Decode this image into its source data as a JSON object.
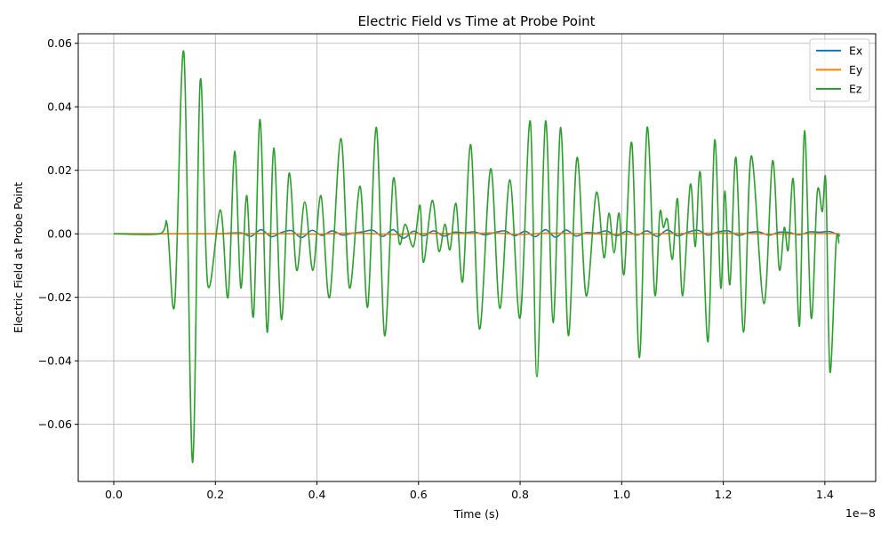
{
  "chart_data": {
    "type": "line",
    "title": "Electric Field vs Time at Probe Point",
    "xlabel": "Time (s)",
    "ylabel": "Electric Field at Probe Point",
    "x_scale_label": "1e−8",
    "xlim": [
      -0.07,
      1.5
    ],
    "ylim": [
      -0.078,
      0.063
    ],
    "xticks": [
      0.0,
      0.2,
      0.4,
      0.6,
      0.8,
      1.0,
      1.2,
      1.4
    ],
    "xtick_labels": [
      "0.0",
      "0.2",
      "0.4",
      "0.6",
      "0.8",
      "1.0",
      "1.2",
      "1.4"
    ],
    "yticks": [
      -0.06,
      -0.04,
      -0.02,
      0.0,
      0.02,
      0.04,
      0.06
    ],
    "ytick_labels": [
      "−0.06",
      "−0.04",
      "−0.02",
      "0.00",
      "0.02",
      "0.04",
      "0.06"
    ],
    "grid": true,
    "legend_position": "top-right",
    "series": [
      {
        "name": "Ex",
        "color": "#1f77b4",
        "x": [
          0.0,
          0.1,
          0.2,
          0.25,
          0.27,
          0.29,
          0.31,
          0.33,
          0.35,
          0.37,
          0.39,
          0.41,
          0.43,
          0.45,
          0.47,
          0.49,
          0.51,
          0.53,
          0.55,
          0.57,
          0.59,
          0.61,
          0.63,
          0.65,
          0.67,
          0.69,
          0.71,
          0.73,
          0.75,
          0.77,
          0.79,
          0.81,
          0.83,
          0.85,
          0.87,
          0.89,
          0.91,
          0.93,
          0.95,
          0.97,
          0.99,
          1.01,
          1.03,
          1.05,
          1.07,
          1.09,
          1.11,
          1.13,
          1.15,
          1.17,
          1.19,
          1.21,
          1.23,
          1.25,
          1.27,
          1.29,
          1.31,
          1.33,
          1.35,
          1.37,
          1.39,
          1.41,
          1.43
        ],
        "y": [
          0.0,
          0.0,
          0.0,
          0.0003,
          -0.0008,
          0.0013,
          -0.0009,
          0.0004,
          0.001,
          -0.0012,
          0.0011,
          -0.0005,
          0.0009,
          -0.0004,
          0.0002,
          0.0006,
          0.0011,
          -0.0008,
          0.0013,
          -0.0014,
          0.0008,
          -0.0006,
          0.0009,
          -0.0007,
          0.0005,
          0.0003,
          0.0006,
          -0.0003,
          0.0004,
          0.0009,
          -0.0006,
          0.0008,
          -0.0009,
          0.0013,
          -0.0011,
          0.0012,
          -0.0007,
          0.0004,
          0.0002,
          0.0009,
          -0.0006,
          0.0008,
          -0.0004,
          0.0009,
          -0.0008,
          0.0012,
          -0.0006,
          0.0005,
          0.0011,
          -0.0004,
          0.0006,
          0.0009,
          -0.0005,
          0.0004,
          0.0006,
          -0.0004,
          0.0005,
          0.0004,
          -0.0003,
          0.0006,
          0.0005,
          0.0007,
          -0.0007
        ]
      },
      {
        "name": "Ey",
        "color": "#ff7f0e",
        "x": [
          0.0,
          0.1,
          0.2,
          0.3,
          0.4,
          0.45,
          0.5,
          0.55,
          0.6,
          0.7,
          0.75,
          0.8,
          0.85,
          0.9,
          1.0,
          1.1,
          1.2,
          1.25,
          1.3,
          1.4,
          1.43
        ],
        "y": [
          0.0,
          0.0,
          0.0,
          0.0001,
          -0.0001,
          0.0002,
          0.0001,
          -0.0002,
          0.0001,
          0.0001,
          0.0003,
          -0.0002,
          0.0002,
          0.0001,
          -0.0001,
          0.0001,
          0.0002,
          0.0001,
          -0.0001,
          0.0001,
          0.0
        ]
      },
      {
        "name": "Ez",
        "color": "#2ca02c",
        "x": [
          0.0,
          0.09,
          0.105,
          0.12,
          0.138,
          0.155,
          0.17,
          0.185,
          0.21,
          0.225,
          0.238,
          0.25,
          0.262,
          0.275,
          0.288,
          0.302,
          0.315,
          0.33,
          0.345,
          0.36,
          0.376,
          0.392,
          0.408,
          0.425,
          0.447,
          0.464,
          0.485,
          0.5,
          0.517,
          0.533,
          0.55,
          0.562,
          0.574,
          0.59,
          0.603,
          0.61,
          0.627,
          0.64,
          0.652,
          0.662,
          0.674,
          0.687,
          0.703,
          0.72,
          0.742,
          0.76,
          0.78,
          0.8,
          0.82,
          0.833,
          0.85,
          0.865,
          0.88,
          0.895,
          0.912,
          0.93,
          0.95,
          0.965,
          0.975,
          0.985,
          0.995,
          1.005,
          1.02,
          1.035,
          1.05,
          1.065,
          1.075,
          1.082,
          1.09,
          1.1,
          1.11,
          1.12,
          1.135,
          1.145,
          1.155,
          1.17,
          1.183,
          1.195,
          1.203,
          1.213,
          1.225,
          1.24,
          1.255,
          1.28,
          1.297,
          1.31,
          1.32,
          1.328,
          1.338,
          1.35,
          1.36,
          1.373,
          1.385,
          1.395,
          1.402,
          1.41,
          1.422,
          1.428
        ],
        "y": [
          0.0,
          0.0,
          0.003,
          -0.022,
          0.057,
          -0.072,
          0.048,
          -0.016,
          0.0075,
          -0.02,
          0.026,
          -0.017,
          0.012,
          -0.026,
          0.036,
          -0.031,
          0.027,
          -0.027,
          0.019,
          -0.0115,
          0.01,
          -0.0115,
          0.012,
          -0.02,
          0.03,
          -0.017,
          0.015,
          -0.023,
          0.0335,
          -0.032,
          0.017,
          -0.003,
          0.003,
          -0.004,
          0.009,
          -0.009,
          0.0105,
          -0.0055,
          0.003,
          -0.005,
          0.0095,
          -0.015,
          0.028,
          -0.03,
          0.0205,
          -0.0235,
          0.017,
          -0.0265,
          0.0355,
          -0.045,
          0.0355,
          -0.028,
          0.0335,
          -0.032,
          0.024,
          -0.0195,
          0.013,
          -0.0075,
          0.0065,
          -0.006,
          0.0065,
          -0.0125,
          0.0285,
          -0.039,
          0.0335,
          -0.019,
          0.0065,
          0.002,
          0.0045,
          -0.008,
          0.011,
          -0.0195,
          0.0155,
          -0.004,
          0.019,
          -0.034,
          0.0295,
          -0.017,
          0.0135,
          -0.016,
          0.024,
          -0.031,
          0.0245,
          -0.022,
          0.023,
          -0.011,
          0.002,
          -0.005,
          0.017,
          -0.029,
          0.0325,
          -0.0265,
          0.013,
          0.007,
          0.016,
          -0.0435,
          -0.003,
          -0.003
        ]
      }
    ]
  }
}
